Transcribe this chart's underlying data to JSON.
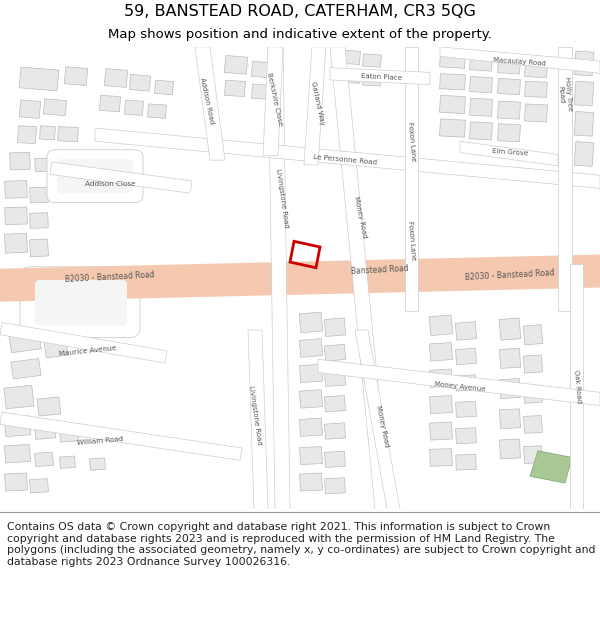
{
  "title_line1": "59, BANSTEAD ROAD, CATERHAM, CR3 5QG",
  "title_line2": "Map shows position and indicative extent of the property.",
  "title_fontsize": 11.5,
  "subtitle_fontsize": 9.5,
  "copyright_text": "Contains OS data © Crown copyright and database right 2021. This information is subject to Crown copyright and database rights 2023 and is reproduced with the permission of HM Land Registry. The polygons (including the associated geometry, namely x, y co-ordinates) are subject to Crown copyright and database rights 2023 Ordnance Survey 100026316.",
  "copyright_fontsize": 7.8,
  "map_bg": "#f5f5f5",
  "road_main_color": "#f5c9b0",
  "road_sec_color": "#ffffff",
  "road_border": "#cccccc",
  "building_fill": "#e8e8e8",
  "building_edge": "#bbbbbb",
  "highlight_color": "#cc0000",
  "green_color": "#a8c896",
  "label_color": "#555555",
  "label_size": 5.0,
  "fig_bg": "#ffffff"
}
